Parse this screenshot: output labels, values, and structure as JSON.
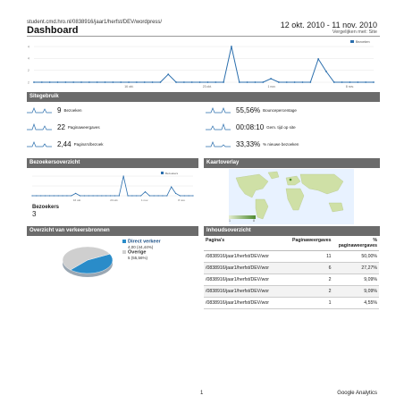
{
  "header": {
    "site_url": "student.cmd.hro.nl/0838916/jaar1/herfst/DEV/wordpress/",
    "title": "Dashboard",
    "date_range": "12 okt. 2010 - 11 nov. 2010",
    "compare_note": "Vergelijken met: Site"
  },
  "main_chart": {
    "legend": "Bezoeken",
    "y_ticks": [
      "4",
      "4",
      "2",
      "2"
    ],
    "x_ticks": [
      "16 okt.",
      "23 okt.",
      "1 nov.",
      "8 nov."
    ],
    "color": "#2a6ead"
  },
  "site_usage": {
    "title": "Sitegebruik",
    "metrics": [
      {
        "value": "9",
        "label": "Bezoeken"
      },
      {
        "value": "55,56%",
        "label": "Bouncepercentage"
      },
      {
        "value": "22",
        "label": "Paginaweergaves"
      },
      {
        "value": "00:08:10",
        "label": "Gem. tijd op site"
      },
      {
        "value": "2,44",
        "label": "Pagina's/bezoek"
      },
      {
        "value": "33,33%",
        "label": "% nieuwe bezoeken"
      }
    ]
  },
  "visitors_overview": {
    "title": "Bezoekersoverzicht",
    "legend": "Bezoekers",
    "x_ticks": [
      "16 okt.",
      "23 okt.",
      "1 nov.",
      "8 nov."
    ],
    "total_label": "Bezoekers",
    "total_value": "3"
  },
  "map_overlay": {
    "title": "Kaartoverlay",
    "scale_min": "1",
    "scale_max": "8"
  },
  "traffic_sources": {
    "title": "Overzicht van verkeersbronnen",
    "slices": [
      {
        "name": "Direct verkeer",
        "detail": "4,00 (44,44%)",
        "color": "#2a8cc9"
      },
      {
        "name": "Overige",
        "detail": "5 (55,56%)",
        "color": "#cfcfcf"
      }
    ]
  },
  "content_overview": {
    "title": "Inhoudsoverzicht",
    "columns": [
      "Pagina's",
      "Paginaweergaves",
      "% paginaweergaves"
    ],
    "rows": [
      {
        "page": "/0838916/jaar1/herfst/DEV/wor",
        "views": "11",
        "pct": "50,00%"
      },
      {
        "page": "/0838916/jaar1/herfst/DEV/wor",
        "views": "6",
        "pct": "27,27%"
      },
      {
        "page": "/0838916/jaar1/herfst/DEV/wor",
        "views": "2",
        "pct": "9,09%"
      },
      {
        "page": "/0838916/jaar1/herfst/DEV/wor",
        "views": "2",
        "pct": "9,09%"
      },
      {
        "page": "/0838916/jaar1/herfst/DEV/wor",
        "views": "1",
        "pct": "4,55%"
      }
    ]
  },
  "footer": {
    "page_number": "1",
    "brand": "Google Analytics"
  }
}
